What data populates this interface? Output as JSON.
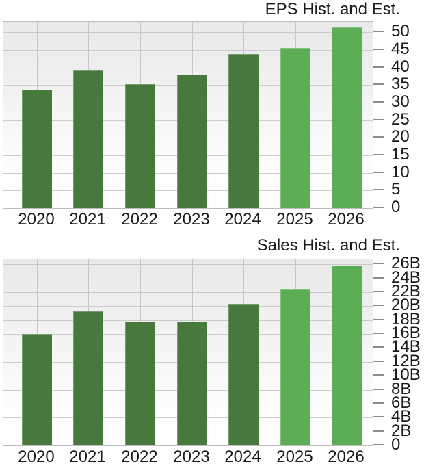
{
  "page": {
    "background": "#ffffff"
  },
  "colors": {
    "historical_bar": "#47793C",
    "estimate_bar": "#5CAD55"
  },
  "chart_data": [
    {
      "type": "bar",
      "title": "EPS Hist. and Est.",
      "categories": [
        "2020",
        "2021",
        "2022",
        "2023",
        "2024",
        "2025",
        "2026"
      ],
      "values": [
        33.7,
        39.2,
        35.2,
        37.9,
        43.8,
        45.6,
        51.5
      ],
      "bar_kinds": [
        "historical",
        "historical",
        "historical",
        "historical",
        "historical",
        "estimate",
        "estimate"
      ],
      "xlabel": "",
      "ylabel": "",
      "ylim": [
        0,
        53
      ],
      "yticks": [
        {
          "value": 0,
          "label": "0"
        },
        {
          "value": 5,
          "label": "5"
        },
        {
          "value": 10,
          "label": "10"
        },
        {
          "value": 15,
          "label": "15"
        },
        {
          "value": 20,
          "label": "20"
        },
        {
          "value": 25,
          "label": "25"
        },
        {
          "value": 30,
          "label": "30"
        },
        {
          "value": 35,
          "label": "35"
        },
        {
          "value": 40,
          "label": "40"
        },
        {
          "value": 45,
          "label": "45"
        },
        {
          "value": 50,
          "label": "50"
        }
      ],
      "grid": true,
      "legend": "none"
    },
    {
      "type": "bar",
      "title": "Sales Hist. and Est.",
      "categories": [
        "2020",
        "2021",
        "2022",
        "2023",
        "2024",
        "2025",
        "2026"
      ],
      "values": [
        16.0,
        19.2,
        17.8,
        17.8,
        20.3,
        22.4,
        25.8
      ],
      "bar_kinds": [
        "historical",
        "historical",
        "historical",
        "historical",
        "historical",
        "estimate",
        "estimate"
      ],
      "xlabel": "",
      "ylabel": "",
      "ylim": [
        0,
        26.7
      ],
      "yticks": [
        {
          "value": 0,
          "label": "0"
        },
        {
          "value": 2,
          "label": "2B"
        },
        {
          "value": 4,
          "label": "4B"
        },
        {
          "value": 6,
          "label": "6B"
        },
        {
          "value": 8,
          "label": "8B"
        },
        {
          "value": 10,
          "label": "10B"
        },
        {
          "value": 12,
          "label": "12B"
        },
        {
          "value": 14,
          "label": "14B"
        },
        {
          "value": 16,
          "label": "16B"
        },
        {
          "value": 18,
          "label": "18B"
        },
        {
          "value": 20,
          "label": "20B"
        },
        {
          "value": 22,
          "label": "22B"
        },
        {
          "value": 24,
          "label": "24B"
        },
        {
          "value": 26,
          "label": "26B"
        }
      ],
      "grid": true,
      "legend": "none"
    }
  ]
}
